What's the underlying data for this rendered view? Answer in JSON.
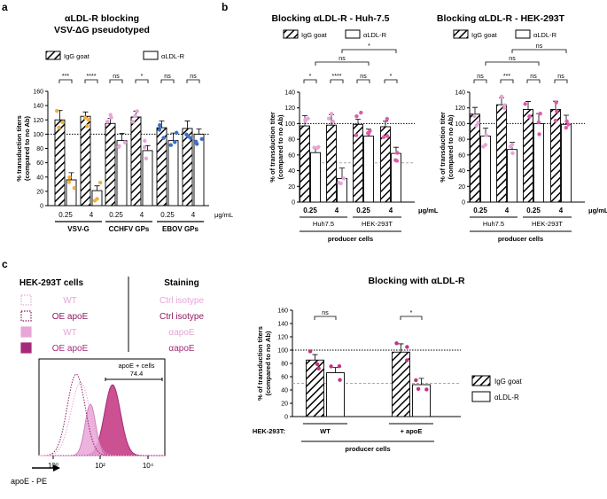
{
  "panel_labels": {
    "a": "a",
    "b": "b",
    "c": "c"
  },
  "colors": {
    "pink_light": "#e7a6d7",
    "pink_mid": "#e05aa8",
    "magenta": "#c2337f",
    "orange": "#f0b040",
    "blue": "#3c6fc6",
    "gray_line": "#aaaaaa",
    "black": "#000000"
  },
  "chart_data": [
    {
      "id": "a",
      "type": "bar",
      "title": "αLDL-R blocking",
      "subtitle": "VSV-ΔG pseudotyped",
      "ylabel": "% transduction titers (compared to no Ab)",
      "ylim": [
        0,
        160
      ],
      "yticks": [
        0,
        20,
        40,
        60,
        80,
        100,
        120,
        140,
        160
      ],
      "reference_line": 100,
      "legend": [
        "IgG goat",
        "αLDL-R"
      ],
      "unit_label": "μg/mL",
      "groups": [
        {
          "name": "VSV-G",
          "dot_color": "#f0b040",
          "bars": [
            {
              "dose": "0.25",
              "igg": 120,
              "aldlr": 36,
              "sig": "***"
            },
            {
              "dose": "4",
              "igg": 125,
              "aldlr": 21,
              "sig": "****"
            }
          ]
        },
        {
          "name": "CCHFV GPs",
          "dot_color": "#e7a6d7",
          "bars": [
            {
              "dose": "0.25",
              "igg": 115,
              "aldlr": 91,
              "sig": "ns"
            },
            {
              "dose": "4",
              "igg": 124,
              "aldlr": 77,
              "sig": "*"
            }
          ]
        },
        {
          "name": "EBOV GPs",
          "dot_color": "#3c6fc6",
          "bars": [
            {
              "dose": "0.25",
              "igg": 109,
              "aldlr": 91,
              "sig": "ns"
            },
            {
              "dose": "4",
              "igg": 108,
              "aldlr": 100,
              "sig": "ns"
            }
          ]
        }
      ]
    },
    {
      "id": "b1",
      "type": "bar",
      "title": "Blocking αLDL-R - Huh-7.5",
      "ylabel": "% of transduction titer (compared to no Ab)",
      "ylim": [
        0,
        140
      ],
      "yticks": [
        0,
        20,
        40,
        60,
        80,
        100,
        120,
        140
      ],
      "reference_line": 100,
      "reference_line_2": 50,
      "legend": [
        "IgG goat",
        "αLDL-R"
      ],
      "unit_label": "μg/mL",
      "xlabel": "producer cells",
      "top_sig": [
        {
          "label": "ns"
        },
        {
          "label": "*"
        }
      ],
      "groups": [
        {
          "name": "Huh7.5",
          "dot_color": "#e7a6d7",
          "bars": [
            {
              "dose": "0.25",
              "igg": 97,
              "aldlr": 63,
              "sig": "*"
            },
            {
              "dose": "4",
              "igg": 98,
              "aldlr": 30,
              "sig": "****"
            }
          ]
        },
        {
          "name": "HEK-293T",
          "dot_color": "#e05aa8",
          "bars": [
            {
              "dose": "0.25",
              "igg": 99,
              "aldlr": 84,
              "sig": "ns"
            },
            {
              "dose": "4",
              "igg": 96,
              "aldlr": 62,
              "sig": "*"
            }
          ]
        }
      ]
    },
    {
      "id": "b2",
      "type": "bar",
      "title": "Blocking αLDL-R - HEK-293T",
      "ylabel": "% of transduction titer (compared to no Ab)",
      "ylim": [
        0,
        140
      ],
      "yticks": [
        0,
        20,
        40,
        60,
        80,
        100,
        120,
        140
      ],
      "reference_line": 100,
      "legend": [
        "IgG goat",
        "αLDL-R"
      ],
      "unit_label": "μg/mL",
      "xlabel": "producer cells",
      "top_sig": [
        {
          "label": "ns"
        },
        {
          "label": "ns"
        }
      ],
      "groups": [
        {
          "name": "Huh7.5",
          "dot_color": "#e7a6d7",
          "bars": [
            {
              "dose": "0.25",
              "igg": 112,
              "aldlr": 84,
              "sig": "ns"
            },
            {
              "dose": "4",
              "igg": 124,
              "aldlr": 67,
              "sig": "***"
            }
          ]
        },
        {
          "name": "HEK-293T",
          "dot_color": "#e05aa8",
          "bars": [
            {
              "dose": "0.25",
              "igg": 118,
              "aldlr": 100,
              "sig": "ns"
            },
            {
              "dose": "4",
              "igg": 118,
              "aldlr": 99,
              "sig": "ns"
            }
          ]
        }
      ]
    },
    {
      "id": "c_flow",
      "type": "area",
      "title": "HEK-293T cells",
      "staining_title": "Staining",
      "xlabel": "apoE - PE",
      "xticks": [
        "10⁰",
        "10²",
        "10⁴"
      ],
      "gate_label": "apoE + cells",
      "gate_value": "74.4",
      "legend": [
        {
          "cells": "WT",
          "staining": "Ctrl isotype",
          "style": "dotted-light"
        },
        {
          "cells": "OE apoE",
          "staining": "Ctrl isotype",
          "style": "dotted-dark"
        },
        {
          "cells": "WT",
          "staining": "αapoE",
          "style": "filled-light"
        },
        {
          "cells": "OE apoE",
          "staining": "αapoE",
          "style": "filled-dark"
        }
      ]
    },
    {
      "id": "c_bar",
      "type": "bar",
      "title": "Blocking with αLDL-R",
      "ylabel": "% of transduction titers (compared to no Ab)",
      "ylim": [
        0,
        160
      ],
      "yticks": [
        0,
        20,
        40,
        60,
        80,
        100,
        120,
        140,
        160
      ],
      "reference_line": 100,
      "reference_line_2": 50,
      "legend": [
        "IgG goat",
        "αLDL-R"
      ],
      "row_label": "HEK-293T:",
      "xlabel": "producer cells",
      "groups": [
        {
          "name": "WT",
          "dot_color": "#c2337f",
          "bars": [
            {
              "igg": 85,
              "aldlr": 66,
              "sig": "ns"
            }
          ]
        },
        {
          "name": "+ apoE",
          "dot_color": "#c2337f",
          "bars": [
            {
              "igg": 97,
              "aldlr": 48,
              "sig": "*"
            }
          ]
        }
      ]
    }
  ]
}
